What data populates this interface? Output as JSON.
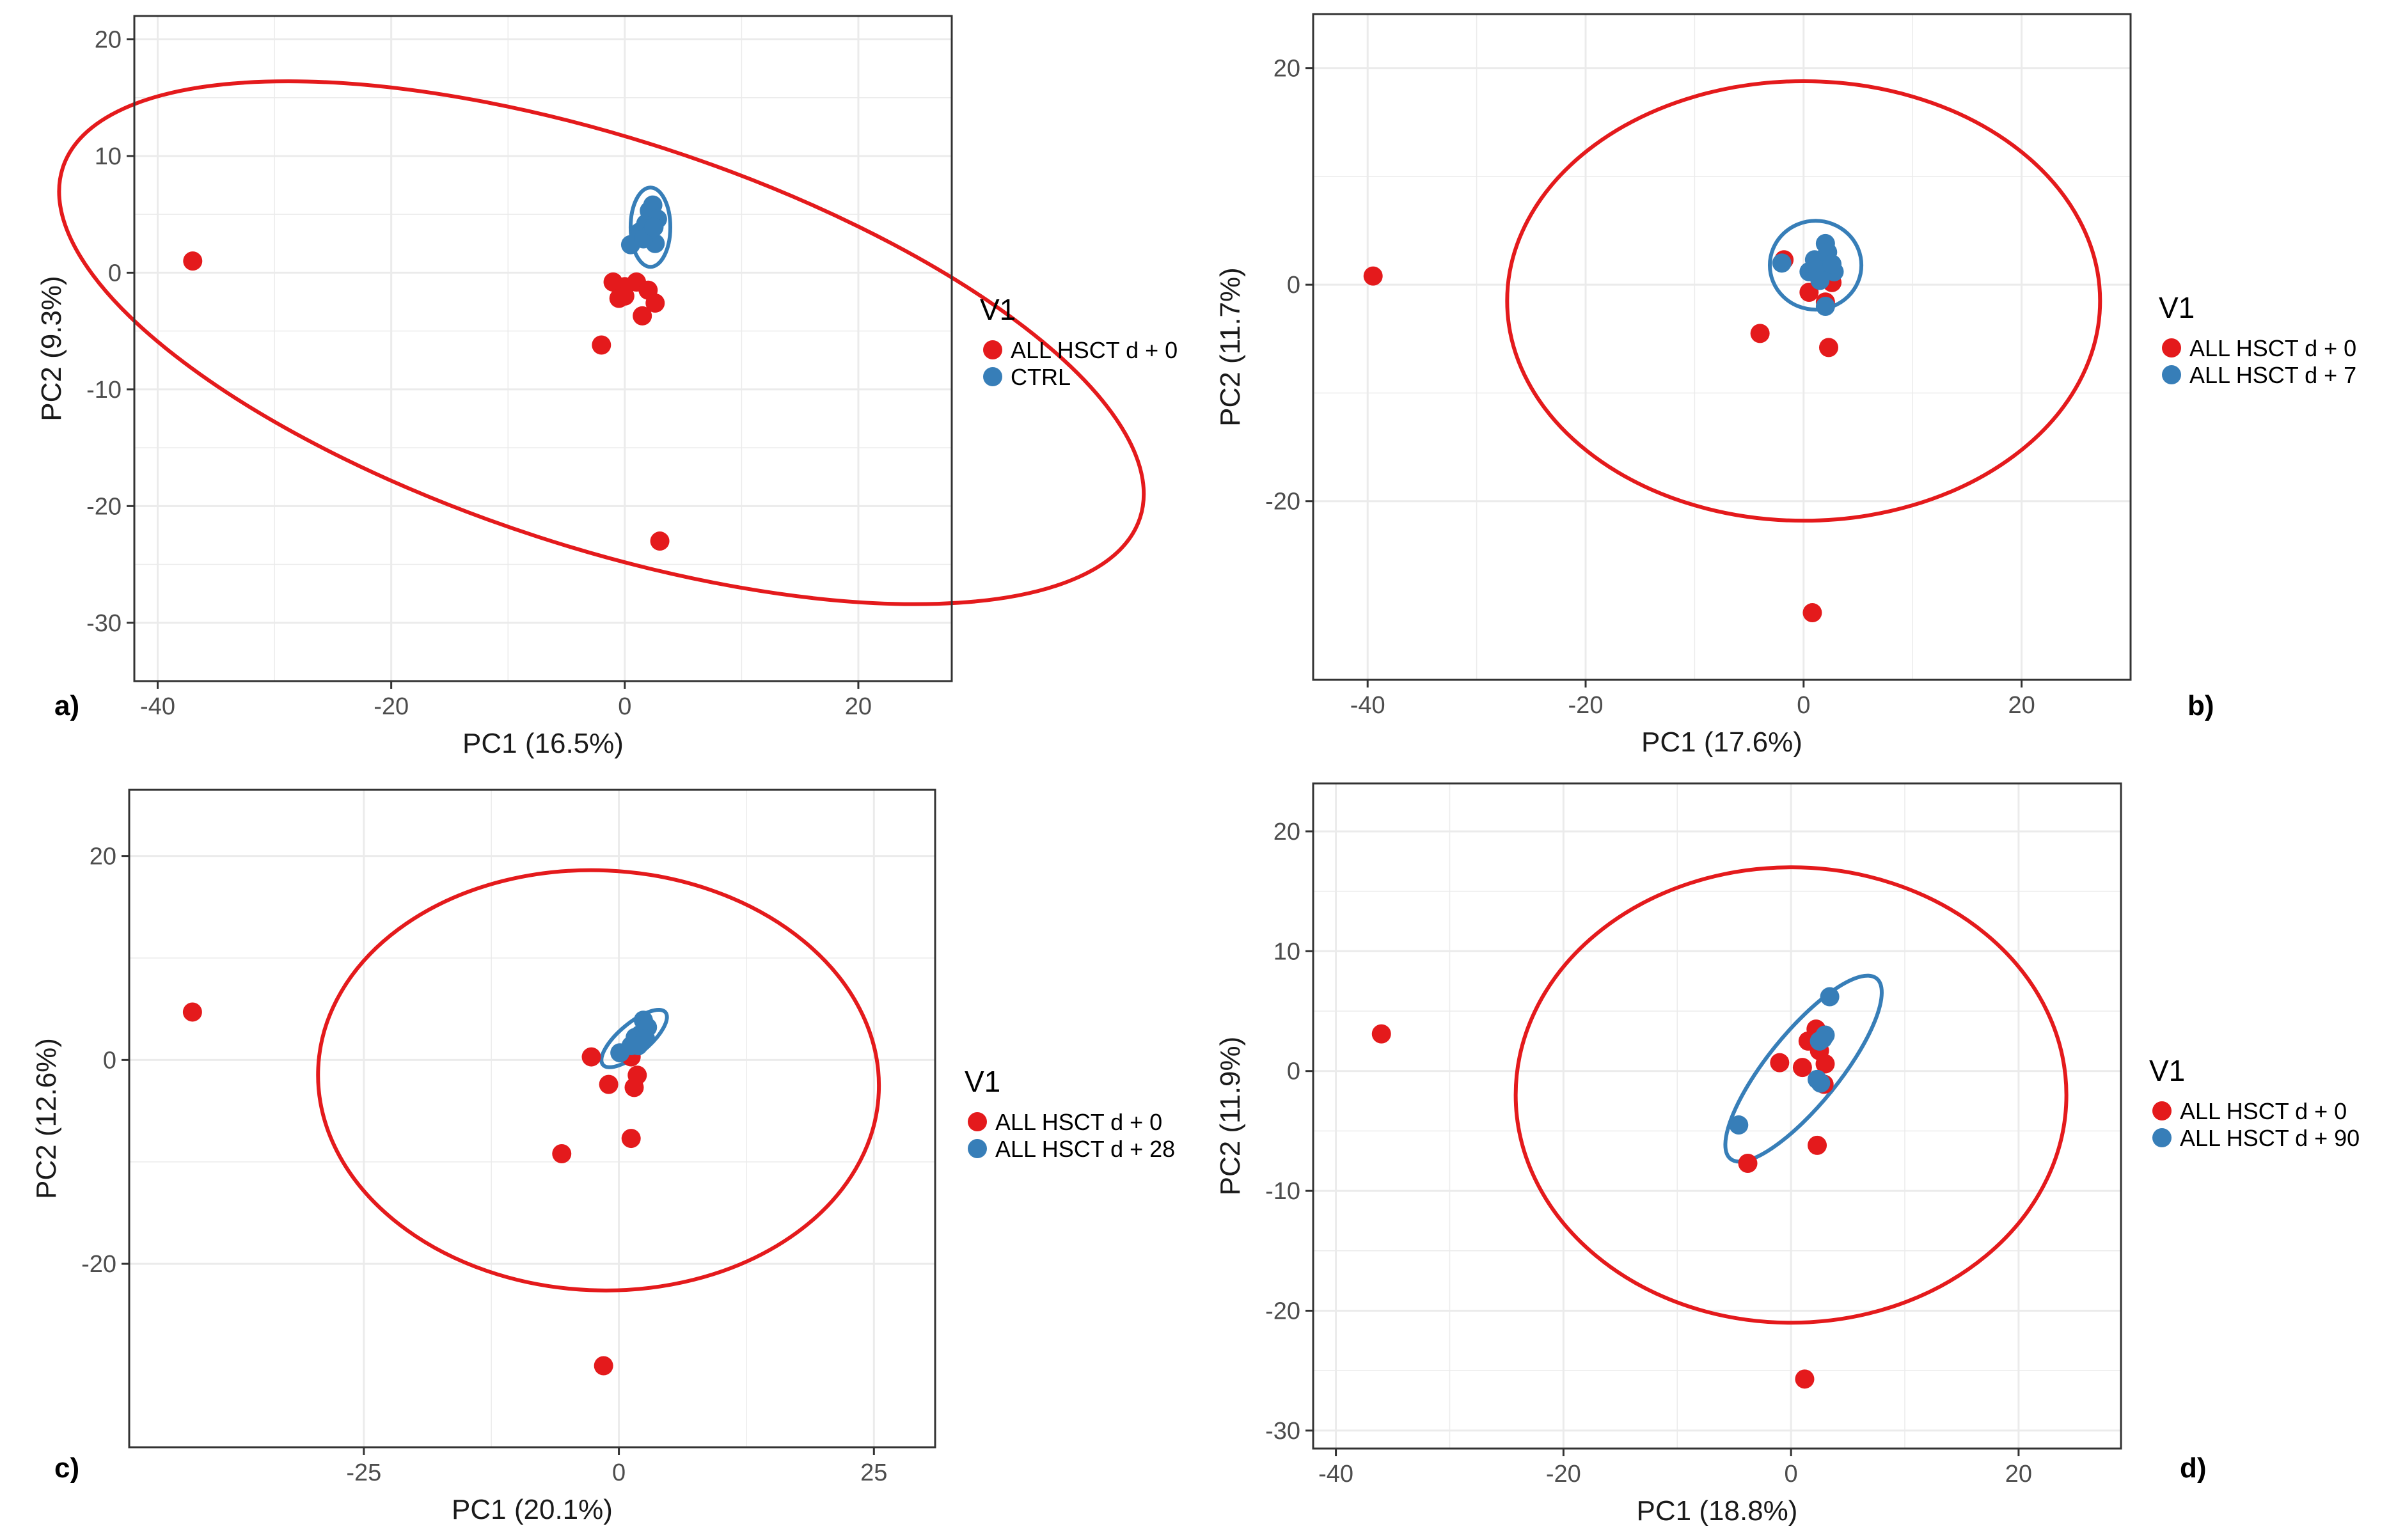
{
  "colors": {
    "red": "#e41a1c",
    "blue": "#377eb8",
    "grid": "#ebebeb",
    "frame": "#333333"
  },
  "chart_data": [
    {
      "type": "scatter",
      "panel_label": "a)",
      "xlabel": "PC1 (16.5%)",
      "ylabel": "PC2 (9.3%)",
      "xlim": [
        -42,
        28
      ],
      "ylim": [
        -35,
        22
      ],
      "xticks": [
        -40,
        -20,
        0,
        20
      ],
      "yticks": [
        20,
        10,
        0,
        -10,
        -20,
        -30
      ],
      "legend": {
        "title": "V1",
        "entries": [
          "ALL HSCT d + 0",
          "CTRL"
        ]
      },
      "series": [
        {
          "name": "ALL HSCT d + 0",
          "color": "#e41a1c",
          "points": [
            [
              -37,
              1
            ],
            [
              -2,
              -6.2
            ],
            [
              3,
              -23
            ],
            [
              -1,
              -0.8
            ],
            [
              0,
              -1.2
            ],
            [
              1,
              -0.8
            ],
            [
              2,
              -1.5
            ],
            [
              -0.5,
              -2.2
            ],
            [
              0,
              -2
            ],
            [
              1.5,
              -3.7
            ],
            [
              2.6,
              -2.6
            ]
          ],
          "ellipse": {
            "cx": -2,
            "cy": -6,
            "rx": 48.5,
            "ry": 17.5,
            "angle_deg": -18
          }
        },
        {
          "name": "CTRL",
          "color": "#377eb8",
          "points": [
            [
              0.5,
              2.4
            ],
            [
              1.3,
              3.5
            ],
            [
              1.8,
              4.2
            ],
            [
              2.1,
              5.3
            ],
            [
              2.4,
              5.8
            ],
            [
              2.1,
              3.2
            ],
            [
              2.6,
              2.5
            ],
            [
              2.8,
              4.6
            ],
            [
              1.6,
              2.9
            ],
            [
              2.5,
              3.9
            ]
          ],
          "ellipse": {
            "cx": 2.2,
            "cy": 3.9,
            "rx": 1.7,
            "ry": 3.4,
            "angle_deg": 0
          }
        }
      ]
    },
    {
      "type": "scatter",
      "panel_label": "b)",
      "xlabel": "PC1 (17.6%)",
      "ylabel": "PC2 (11.7%)",
      "xlim": [
        -45,
        30
      ],
      "ylim": [
        -36.5,
        25
      ],
      "xticks": [
        -40,
        -20,
        0,
        20
      ],
      "yticks": [
        20,
        0,
        -20
      ],
      "legend": {
        "title": "V1",
        "entries": [
          "ALL HSCT d + 0",
          "ALL HSCT d + 7"
        ]
      },
      "series": [
        {
          "name": "ALL HSCT d + 0",
          "color": "#e41a1c",
          "points": [
            [
              -39.5,
              0.8
            ],
            [
              -4,
              -4.5
            ],
            [
              2.3,
              -5.8
            ],
            [
              0.8,
              -30.3
            ],
            [
              -1.8,
              2.3
            ],
            [
              0.5,
              -0.7
            ],
            [
              2.6,
              0.2
            ],
            [
              1.5,
              0.9
            ],
            [
              2,
              -1.6
            ]
          ],
          "ellipse": {
            "cx": 0,
            "cy": -1.5,
            "rx": 27.2,
            "ry": 20.3,
            "angle_deg": 0
          }
        },
        {
          "name": "ALL HSCT d + 7",
          "color": "#377eb8",
          "points": [
            [
              -2,
              2
            ],
            [
              0.5,
              1.2
            ],
            [
              1,
              2.3
            ],
            [
              1.3,
              1.4
            ],
            [
              2,
              3.8
            ],
            [
              2.2,
              3
            ],
            [
              2.8,
              1.2
            ],
            [
              1.5,
              0.4
            ],
            [
              2.6,
              1.9
            ],
            [
              2,
              -2
            ]
          ],
          "ellipse": {
            "cx": 1.1,
            "cy": 1.8,
            "rx": 4.2,
            "ry": 4.1,
            "angle_deg": 0
          }
        }
      ]
    },
    {
      "type": "scatter",
      "panel_label": "c)",
      "xlabel": "PC1 (20.1%)",
      "ylabel": "PC2 (12.6%)",
      "xlim": [
        -48,
        31
      ],
      "ylim": [
        -38,
        26.5
      ],
      "xticks": [
        -25,
        0,
        25
      ],
      "yticks": [
        20,
        0,
        -20
      ],
      "legend": {
        "title": "V1",
        "entries": [
          "ALL HSCT d + 0",
          "ALL HSCT d + 28"
        ]
      },
      "series": [
        {
          "name": "ALL HSCT d + 0",
          "color": "#e41a1c",
          "points": [
            [
              -41.8,
              4.7
            ],
            [
              -2.7,
              0.3
            ],
            [
              -1,
              -2.4
            ],
            [
              1.5,
              -2.7
            ],
            [
              1.8,
              -1.5
            ],
            [
              1.2,
              -7.7
            ],
            [
              -5.6,
              -9.2
            ],
            [
              -1.5,
              -30
            ],
            [
              1,
              0.9
            ],
            [
              1.2,
              0.3
            ]
          ],
          "ellipse": {
            "cx": -2,
            "cy": -2,
            "rx": 27.5,
            "ry": 20.6,
            "angle_deg": -2.5
          }
        },
        {
          "name": "ALL HSCT d + 28",
          "color": "#377eb8",
          "points": [
            [
              0.1,
              0.7
            ],
            [
              1.2,
              1.4
            ],
            [
              1.6,
              2.2
            ],
            [
              2.1,
              2.5
            ],
            [
              2.4,
              3.9
            ],
            [
              2.8,
              3.2
            ],
            [
              2.6,
              2.1
            ],
            [
              1.9,
              1.4
            ]
          ],
          "ellipse": {
            "cx": 1.5,
            "cy": 2.1,
            "rx": 4,
            "ry": 1.5,
            "angle_deg": 40
          }
        }
      ]
    },
    {
      "type": "scatter",
      "panel_label": "d)",
      "xlabel": "PC1 (18.8%)",
      "ylabel": "PC2 (11.9%)",
      "xlim": [
        -42,
        29
      ],
      "ylim": [
        -31.5,
        24
      ],
      "xticks": [
        -40,
        -20,
        0,
        20
      ],
      "yticks": [
        20,
        10,
        0,
        -10,
        -20,
        -30
      ],
      "legend": {
        "title": "V1",
        "entries": [
          "ALL HSCT d + 0",
          "ALL HSCT d + 90"
        ]
      },
      "series": [
        {
          "name": "ALL HSCT d + 0",
          "color": "#e41a1c",
          "points": [
            [
              -36,
              3.1
            ],
            [
              -1,
              0.7
            ],
            [
              1,
              0.3
            ],
            [
              1.5,
              2.5
            ],
            [
              2.2,
              3.5
            ],
            [
              2.5,
              1.7
            ],
            [
              3,
              0.6
            ],
            [
              2.9,
              -1.1
            ],
            [
              -3.8,
              -7.7
            ],
            [
              2.3,
              -6.2
            ],
            [
              1.2,
              -25.7
            ]
          ],
          "ellipse": {
            "cx": 0,
            "cy": -2,
            "rx": 24.2,
            "ry": 19,
            "angle_deg": 0
          }
        },
        {
          "name": "ALL HSCT d + 90",
          "color": "#377eb8",
          "points": [
            [
              -4.6,
              -4.5
            ],
            [
              2.3,
              -0.7
            ],
            [
              2.5,
              2.5
            ],
            [
              3,
              3
            ],
            [
              2.8,
              2.7
            ],
            [
              3.4,
              6.2
            ],
            [
              2.6,
              -1
            ]
          ],
          "ellipse": {
            "cx": 1.1,
            "cy": 0.2,
            "rx": 10.2,
            "ry": 3,
            "angle_deg": 51
          }
        }
      ]
    }
  ]
}
